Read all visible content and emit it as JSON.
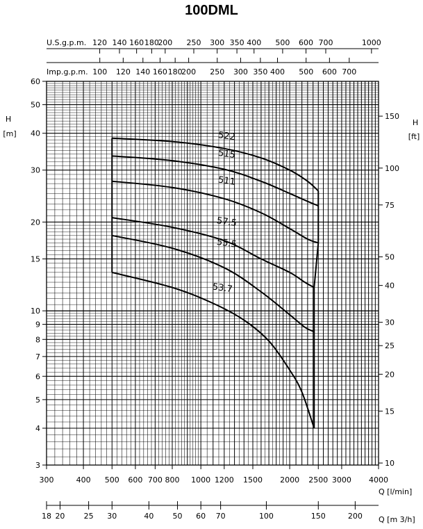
{
  "title": "100DML",
  "chart_data": {
    "type": "line",
    "title": "100DML",
    "x_scale": "log",
    "y_scale": "log",
    "x_primary": {
      "label": "Q [l/min]",
      "range": [
        300,
        4000
      ],
      "ticks": [
        300,
        400,
        500,
        600,
        700,
        800,
        1000,
        1200,
        1500,
        2000,
        2500,
        3000,
        4000
      ],
      "tick_labels": [
        "300",
        "400",
        "500",
        "600",
        "700",
        "800",
        "1000",
        "1200",
        "1500",
        "2000",
        "2500",
        "3000",
        "4000"
      ]
    },
    "x_m3h": {
      "label": "Q [m 3/h]",
      "ticks": [
        18,
        20,
        25,
        30,
        40,
        50,
        60,
        70,
        100,
        150,
        200
      ],
      "tick_labels": [
        "18",
        "20",
        "25",
        "30",
        "40",
        "50",
        "60",
        "70",
        "100",
        "150",
        "200"
      ]
    },
    "x_usgpm": {
      "label": "U.S.g.p.m.",
      "ticks": [
        120,
        140,
        160,
        180,
        200,
        250,
        300,
        350,
        400,
        500,
        600,
        700,
        1000
      ],
      "tick_labels": [
        "120",
        "140",
        "160",
        "180",
        "200",
        "250",
        "300",
        "350",
        "400",
        "500",
        "600",
        "700",
        "1000"
      ]
    },
    "x_impgpm": {
      "label": "Imp.g.p.m.",
      "ticks": [
        100,
        120,
        140,
        160,
        180,
        200,
        250,
        300,
        350,
        400,
        500,
        600,
        700
      ],
      "tick_labels": [
        "100",
        "120",
        "140",
        "160",
        "180",
        "200",
        "250",
        "300",
        "350",
        "400",
        "500",
        "600",
        "700"
      ]
    },
    "y_left": {
      "label_top": "H",
      "label_unit": "[m]",
      "range": [
        3,
        60
      ],
      "ticks": [
        3,
        4,
        5,
        6,
        7,
        8,
        9,
        10,
        15,
        20,
        30,
        40,
        50,
        60
      ],
      "tick_labels": [
        "3",
        "4",
        "5",
        "6",
        "7",
        "8",
        "9",
        "10",
        "15",
        "20",
        "30",
        "40",
        "50",
        "60"
      ]
    },
    "y_right": {
      "label_top": "H",
      "label_unit": "[ft]",
      "ticks": [
        10,
        15,
        20,
        25,
        30,
        40,
        50,
        75,
        100,
        150
      ],
      "tick_labels": [
        "10",
        "15",
        "20",
        "25",
        "30",
        "40",
        "50",
        "75",
        "100",
        "150"
      ]
    },
    "grid": true,
    "legend": "none",
    "series": [
      {
        "name": "522",
        "x": [
          500,
          800,
          1200,
          1600,
          2000,
          2300,
          2500
        ],
        "y": [
          38.5,
          37.5,
          35.5,
          33,
          30,
          27.5,
          25.5
        ],
        "label_at": [
          1220,
          38.3
        ]
      },
      {
        "name": "515",
        "x": [
          500,
          800,
          1200,
          1600,
          2000,
          2300,
          2500
        ],
        "y": [
          33.5,
          32.3,
          30.2,
          27.5,
          25,
          23.5,
          22.7
        ],
        "label_at": [
          1220,
          33.3
        ]
      },
      {
        "name": "511",
        "x": [
          500,
          800,
          1200,
          1600,
          2000,
          2300,
          2500
        ],
        "y": [
          27.5,
          26.2,
          24,
          21.5,
          19,
          17.5,
          17
        ],
        "label_at": [
          1220,
          27.0
        ]
      },
      {
        "name": "57.5",
        "x": [
          500,
          800,
          1200,
          1600,
          2000,
          2250,
          2420
        ],
        "y": [
          20.7,
          19.2,
          17.3,
          15,
          13.5,
          12.5,
          12
        ],
        "label_at": [
          1220,
          19.6
        ]
      },
      {
        "name": "55.5",
        "x": [
          500,
          800,
          1200,
          1600,
          2000,
          2250,
          2420
        ],
        "y": [
          18,
          16.3,
          14,
          11.6,
          9.7,
          8.8,
          8.5
        ],
        "label_at": [
          1220,
          16.6
        ]
      },
      {
        "name": "53.7",
        "x": [
          500,
          800,
          1100,
          1400,
          1700,
          2000,
          2200,
          2420
        ],
        "y": [
          13.5,
          12,
          10.6,
          9.3,
          7.9,
          6.3,
          5.3,
          4.0
        ],
        "label_at": [
          1180,
          11.7
        ]
      }
    ],
    "envelope": {
      "left_x": 500,
      "left_y": [
        13.5,
        38.5
      ],
      "right_x_upper": 2500,
      "right_y_upper": [
        17,
        25.5
      ],
      "right_x_lower": 2420,
      "right_y_lower": [
        4.0,
        12.0
      ]
    },
    "colors": {
      "grid": "#000000",
      "curve": "#000000"
    }
  }
}
